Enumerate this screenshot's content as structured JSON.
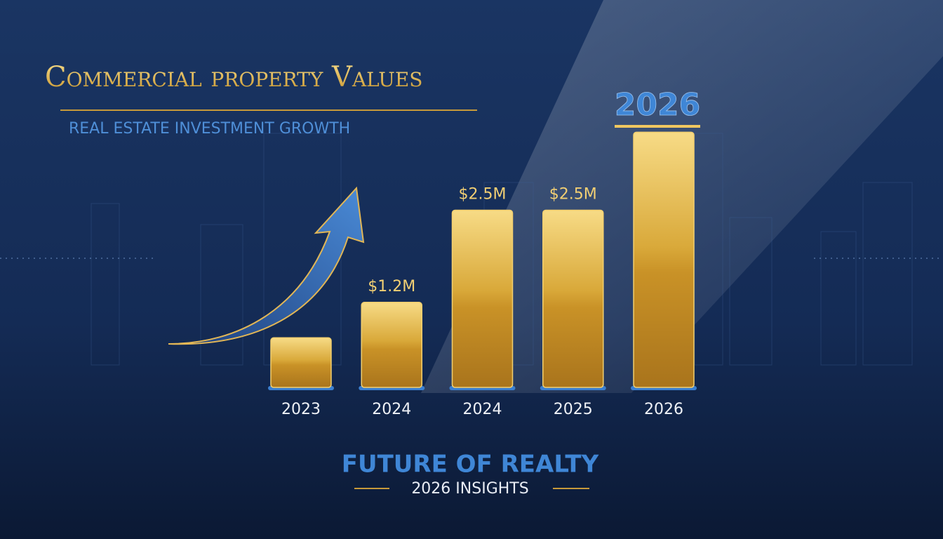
{
  "chart_data": {
    "type": "bar",
    "title": "Commercial property Values",
    "subtitle": "REAL ESTATE INVESTMENT GROWTH",
    "annotation": "2026",
    "footer_title": "FUTURE OF REALTY",
    "footer_subtitle": "2026 INSIGHTS",
    "categories": [
      "2023",
      "2024",
      "2024",
      "2025",
      "2026"
    ],
    "values": [
      0.7,
      1.2,
      2.5,
      2.5,
      3.6
    ],
    "value_labels": [
      null,
      "$1.2M",
      "$2.5M",
      "$2.5M",
      null
    ],
    "color": "#d9a93a",
    "ylim": [
      0,
      4
    ]
  }
}
